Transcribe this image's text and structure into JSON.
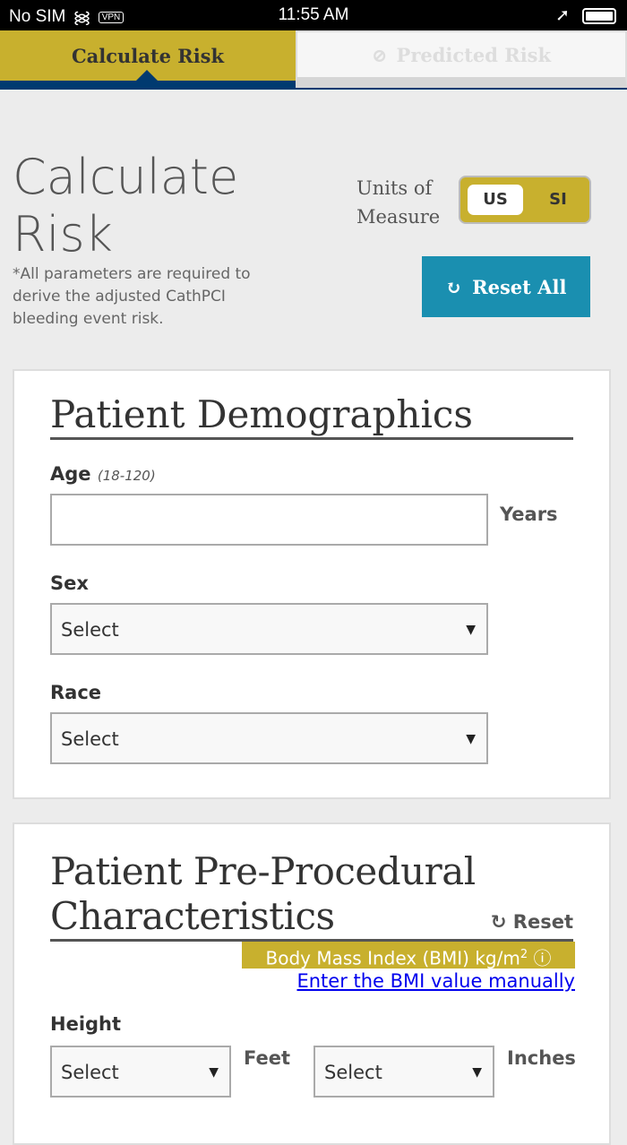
{
  "status": {
    "carrier": "No SIM",
    "vpn": "VPN",
    "time": "11:55 AM"
  },
  "tabs": [
    {
      "label": "Calculate Risk"
    },
    {
      "label": "Predicted Risk",
      "icon": "disabled-icon"
    }
  ],
  "header": {
    "title": "Calculate Risk",
    "note": "*All parameters are required to derive the adjusted CathPCI bleeding event risk.",
    "units_label": "Units of Measure",
    "units": [
      "US",
      "SI"
    ],
    "selected_unit": "US",
    "reset_all": "Reset All"
  },
  "demographics": {
    "title": "Patient Demographics",
    "age_label": "Age",
    "age_range": "(18-120)",
    "age_value": "",
    "age_unit": "Years",
    "sex_label": "Sex",
    "sex_value": "Select",
    "race_label": "Race",
    "race_value": "Select"
  },
  "preprocedural": {
    "title": "Patient Pre-Procedural Characteristics",
    "reset": "Reset",
    "bmi_label": "Body Mass Index (BMI) kg/m",
    "bmi_sup": "2",
    "bmi_link": "Enter the BMI value manually",
    "height_label": "Height",
    "feet_value": "Select",
    "feet_unit": "Feet",
    "inches_value": "Select",
    "inches_unit": "Inches"
  },
  "colors": {
    "gold": "#c8b02e",
    "navy": "#003a70",
    "teal": "#1a8fb0"
  }
}
